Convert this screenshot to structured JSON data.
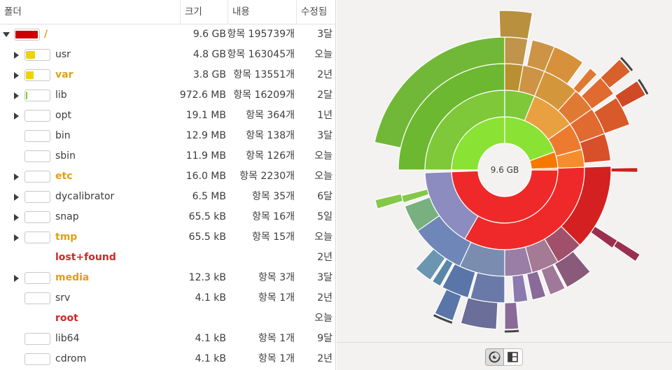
{
  "columns": {
    "folder": "폴더",
    "size": "크기",
    "contents": "내용",
    "modified": "수정됨"
  },
  "rows": [
    {
      "name": "/",
      "size": "9.6 GB",
      "contents": "항목 195739개",
      "modified": "3달",
      "expander": "open",
      "fill": 0.92,
      "fill_color": "#cc0000",
      "style": "orange"
    },
    {
      "name": "usr",
      "size": "4.8 GB",
      "contents": "항목 163045개",
      "modified": "오늘",
      "expander": "closed",
      "fill": 0.38,
      "fill_color": "#edd400",
      "style": "dimmed"
    },
    {
      "name": "var",
      "size": "3.8 GB",
      "contents": "항목 13551개",
      "modified": "2년",
      "expander": "closed",
      "fill": 0.3,
      "fill_color": "#edd400",
      "style": "orange"
    },
    {
      "name": "lib",
      "size": "972.6 MB",
      "contents": "항목 16209개",
      "modified": "2달",
      "expander": "closed",
      "fill": 0.06,
      "fill_color": "#73d216",
      "style": "dimmed"
    },
    {
      "name": "opt",
      "size": "19.1 MB",
      "contents": "항목 364개",
      "modified": "1년",
      "expander": "closed",
      "fill": 0,
      "fill_color": "#73d216",
      "style": "dimmed"
    },
    {
      "name": "bin",
      "size": "12.9 MB",
      "contents": "항목 138개",
      "modified": "3달",
      "expander": "none",
      "fill": 0,
      "fill_color": "#73d216",
      "style": "dimmed"
    },
    {
      "name": "sbin",
      "size": "11.9 MB",
      "contents": "항목 126개",
      "modified": "오늘",
      "expander": "none",
      "fill": 0,
      "fill_color": "#73d216",
      "style": "dimmed"
    },
    {
      "name": "etc",
      "size": "16.0 MB",
      "contents": "항목 2230개",
      "modified": "오늘",
      "expander": "closed",
      "fill": 0,
      "fill_color": "#73d216",
      "style": "orange"
    },
    {
      "name": "dycalibrator",
      "size": "6.5 MB",
      "contents": "항목 35개",
      "modified": "6달",
      "expander": "closed",
      "fill": 0,
      "fill_color": "#73d216",
      "style": "dimmed"
    },
    {
      "name": "snap",
      "size": "65.5 kB",
      "contents": "항목 16개",
      "modified": "5일",
      "expander": "closed",
      "fill": 0,
      "fill_color": "#73d216",
      "style": "dimmed"
    },
    {
      "name": "tmp",
      "size": "65.5 kB",
      "contents": "항목 15개",
      "modified": "오늘",
      "expander": "closed",
      "fill": 0,
      "fill_color": "#73d216",
      "style": "orange"
    },
    {
      "name": "lost+found",
      "size": "",
      "contents": "",
      "modified": "2년",
      "expander": "none",
      "fill": null,
      "fill_color": "",
      "style": "red"
    },
    {
      "name": "media",
      "size": "12.3 kB",
      "contents": "항목 3개",
      "modified": "3달",
      "expander": "closed",
      "fill": 0,
      "fill_color": "#73d216",
      "style": "orange"
    },
    {
      "name": "srv",
      "size": "4.1 kB",
      "contents": "항목 1개",
      "modified": "2년",
      "expander": "none",
      "fill": 0,
      "fill_color": "#73d216",
      "style": "dimmed"
    },
    {
      "name": "root",
      "size": "",
      "contents": "",
      "modified": "오늘",
      "expander": "none",
      "fill": null,
      "fill_color": "",
      "style": "red"
    },
    {
      "name": "lib64",
      "size": "4.1 kB",
      "contents": "항목 1개",
      "modified": "9달",
      "expander": "none",
      "fill": 0,
      "fill_color": "#73d216",
      "style": "dimmed"
    },
    {
      "name": "cdrom",
      "size": "4.1 kB",
      "contents": "항목 1개",
      "modified": "2년",
      "expander": "none",
      "fill": 0,
      "fill_color": "#73d216",
      "style": "dimmed"
    }
  ],
  "chart": {
    "center_label": "9.6 GB",
    "background": "#f3f2f1"
  },
  "view_buttons": {
    "rings_icon": "rings-chart-icon",
    "treemap_icon": "treemap-chart-icon",
    "active": "rings"
  }
}
